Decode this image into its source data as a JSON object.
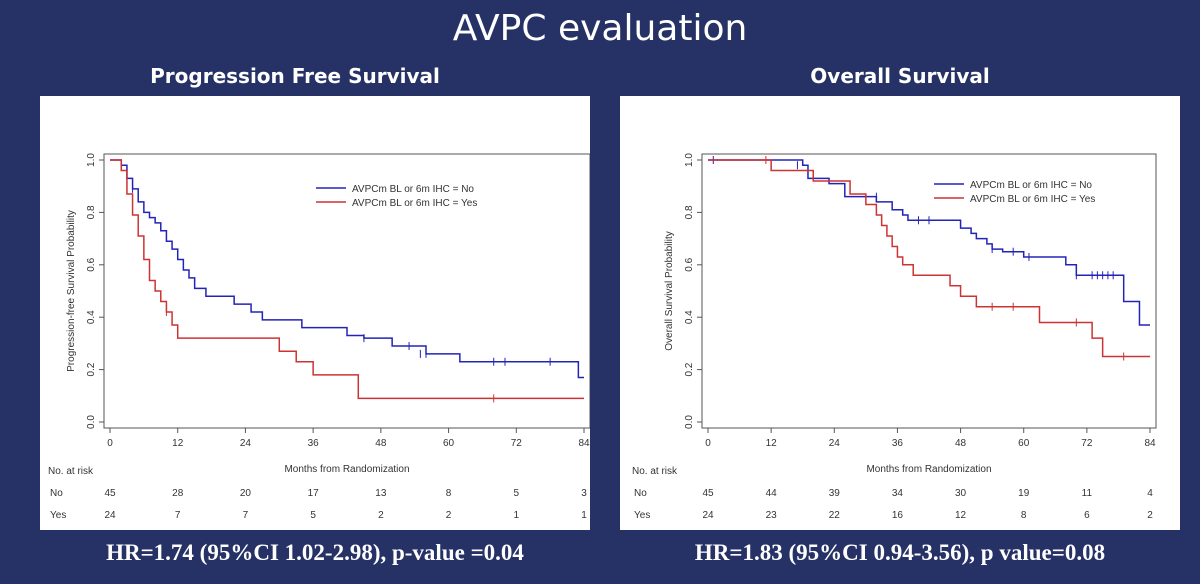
{
  "slide_title": "AVPC evaluation",
  "colors": {
    "no": "#2323b8",
    "yes": "#cc3333",
    "background": "#263266"
  },
  "chart_data": [
    {
      "type": "line",
      "step": true,
      "panel_title": "Progression Free Survival",
      "xlabel": "Months from Randomization",
      "ylabel": "Progression-free Survival Probability",
      "xlim": [
        0,
        84
      ],
      "ylim": [
        0,
        1
      ],
      "xticks": [
        "0",
        "12",
        "24",
        "36",
        "48",
        "60",
        "72",
        "84"
      ],
      "yticks": [
        "0.0",
        "0.2",
        "0.4",
        "0.6",
        "0.8",
        "1.0"
      ],
      "legend": {
        "position": "top-right",
        "entries": [
          "AVPCm BL or 6m IHC = No",
          "AVPCm BL or 6m IHC = Yes"
        ]
      },
      "series": [
        {
          "name": "AVPCm BL or 6m IHC = No",
          "x": [
            0,
            2,
            3,
            4,
            5,
            6,
            7,
            8,
            9,
            10,
            11,
            12,
            13,
            14,
            15,
            17,
            22,
            25,
            27,
            34,
            42,
            45,
            50,
            56,
            62,
            70,
            83,
            84
          ],
          "y": [
            1.0,
            0.98,
            0.93,
            0.89,
            0.84,
            0.8,
            0.78,
            0.76,
            0.73,
            0.69,
            0.66,
            0.62,
            0.58,
            0.55,
            0.51,
            0.48,
            0.45,
            0.42,
            0.39,
            0.36,
            0.33,
            0.32,
            0.29,
            0.26,
            0.23,
            0.23,
            0.17,
            0.17
          ],
          "censor_x": [
            2,
            4,
            45,
            53,
            55,
            56,
            68,
            70,
            78
          ],
          "censor_y": [
            0.98,
            0.89,
            0.32,
            0.29,
            0.26,
            0.26,
            0.23,
            0.23,
            0.23
          ]
        },
        {
          "name": "AVPCm BL or 6m IHC = Yes",
          "x": [
            0,
            2,
            3,
            4,
            5,
            6,
            7,
            8,
            9,
            10,
            11,
            12,
            24,
            30,
            33,
            36,
            38,
            44,
            84
          ],
          "y": [
            1.0,
            0.96,
            0.87,
            0.79,
            0.71,
            0.62,
            0.54,
            0.5,
            0.46,
            0.42,
            0.37,
            0.32,
            0.32,
            0.27,
            0.23,
            0.18,
            0.18,
            0.09,
            0.09
          ],
          "censor_x": [
            10,
            68
          ],
          "censor_y": [
            0.42,
            0.09
          ]
        }
      ],
      "at_risk": {
        "title": "No. at risk",
        "times": [
          "0",
          "12",
          "24",
          "36",
          "48",
          "60",
          "72",
          "84"
        ],
        "rows": [
          {
            "label": "No",
            "values": [
              "45",
              "28",
              "20",
              "17",
              "13",
              "8",
              "5",
              "3"
            ]
          },
          {
            "label": "Yes",
            "values": [
              "24",
              "7",
              "7",
              "5",
              "2",
              "2",
              "1",
              "1"
            ]
          }
        ]
      },
      "hr_text": "HR=1.74 (95%CI 1.02-2.98), p-value =0.04"
    },
    {
      "type": "line",
      "step": true,
      "panel_title": "Overall Survival",
      "xlabel": "Months from Randomization",
      "ylabel": "Overall Survival Probability",
      "xlim": [
        0,
        84
      ],
      "ylim": [
        0,
        1
      ],
      "xticks": [
        "0",
        "12",
        "24",
        "36",
        "48",
        "60",
        "72",
        "84"
      ],
      "yticks": [
        "0.0",
        "0.2",
        "0.4",
        "0.6",
        "0.8",
        "1.0"
      ],
      "legend": {
        "position": "top-right",
        "entries": [
          "AVPCm BL or 6m IHC = No",
          "AVPCm BL or 6m IHC = Yes"
        ]
      },
      "series": [
        {
          "name": "AVPCm BL or 6m IHC = No",
          "x": [
            0,
            18,
            19,
            23,
            26,
            32,
            35,
            37,
            38,
            48,
            50,
            51,
            53,
            54,
            56,
            60,
            68,
            70,
            79,
            82,
            84
          ],
          "y": [
            1.0,
            0.98,
            0.93,
            0.91,
            0.86,
            0.84,
            0.81,
            0.79,
            0.77,
            0.74,
            0.72,
            0.7,
            0.68,
            0.66,
            0.65,
            0.63,
            0.6,
            0.56,
            0.46,
            0.37,
            0.37
          ],
          "censor_x": [
            1,
            17,
            32,
            40,
            42,
            54,
            58,
            61,
            70,
            73,
            74,
            75,
            76,
            77
          ],
          "censor_y": [
            1.0,
            0.98,
            0.86,
            0.77,
            0.77,
            0.66,
            0.65,
            0.63,
            0.56,
            0.56,
            0.56,
            0.56,
            0.56,
            0.56
          ]
        },
        {
          "name": "AVPCm BL or 6m IHC = Yes",
          "x": [
            0,
            12,
            20,
            27,
            30,
            32,
            33,
            34,
            35,
            36,
            37,
            39,
            46,
            48,
            51,
            63,
            73,
            75,
            84
          ],
          "y": [
            1.0,
            0.96,
            0.92,
            0.87,
            0.83,
            0.79,
            0.75,
            0.71,
            0.67,
            0.63,
            0.6,
            0.56,
            0.52,
            0.48,
            0.44,
            0.38,
            0.32,
            0.25,
            0.25
          ],
          "censor_x": [
            11,
            54,
            58,
            70,
            79
          ],
          "censor_y": [
            1.0,
            0.44,
            0.44,
            0.38,
            0.25
          ]
        }
      ],
      "at_risk": {
        "title": "No. at risk",
        "times": [
          "0",
          "12",
          "24",
          "36",
          "48",
          "60",
          "72",
          "84"
        ],
        "rows": [
          {
            "label": "No",
            "values": [
              "45",
              "44",
              "39",
              "34",
              "30",
              "19",
              "11",
              "4"
            ]
          },
          {
            "label": "Yes",
            "values": [
              "24",
              "23",
              "22",
              "16",
              "12",
              "8",
              "6",
              "2"
            ]
          }
        ]
      },
      "hr_text": "HR=1.83 (95%CI 0.94-3.56), p value=0.08"
    }
  ]
}
